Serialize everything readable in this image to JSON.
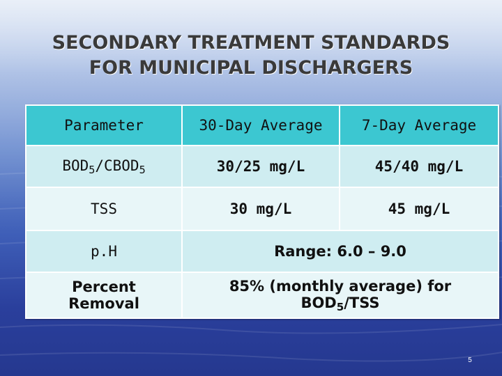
{
  "slide": {
    "title_line1": "SECONDARY TREATMENT STANDARDS",
    "title_line2": "FOR MUNICIPAL DISCHARGERS",
    "page_number": "5"
  },
  "table": {
    "headers": [
      "Parameter",
      "30-Day Average",
      "7-Day Average"
    ],
    "rows": {
      "bod": {
        "param_main": "BOD",
        "param_sub1": "5",
        "param_mid": "/CBOD",
        "param_sub2": "5",
        "avg30": "30/25 mg/L",
        "avg7": "45/40 mg/L"
      },
      "tss": {
        "param": "TSS",
        "avg30": "30 mg/L",
        "avg7": "45 mg/L"
      },
      "ph": {
        "param": "p.H",
        "range": "Range: 6.0 – 9.0"
      },
      "removal": {
        "param_line1": "Percent",
        "param_line2": "Removal",
        "text_line1": "85% (monthly average) for",
        "text_line2_main": "BOD",
        "text_line2_sub": "5",
        "text_line2_end": "/TSS"
      }
    }
  },
  "colors": {
    "header_bg": "#3cc7d1",
    "row_bg_light": "#e8f6f8",
    "row_bg_mid": "#cfedf1",
    "title_color": "#3a3a3a"
  }
}
